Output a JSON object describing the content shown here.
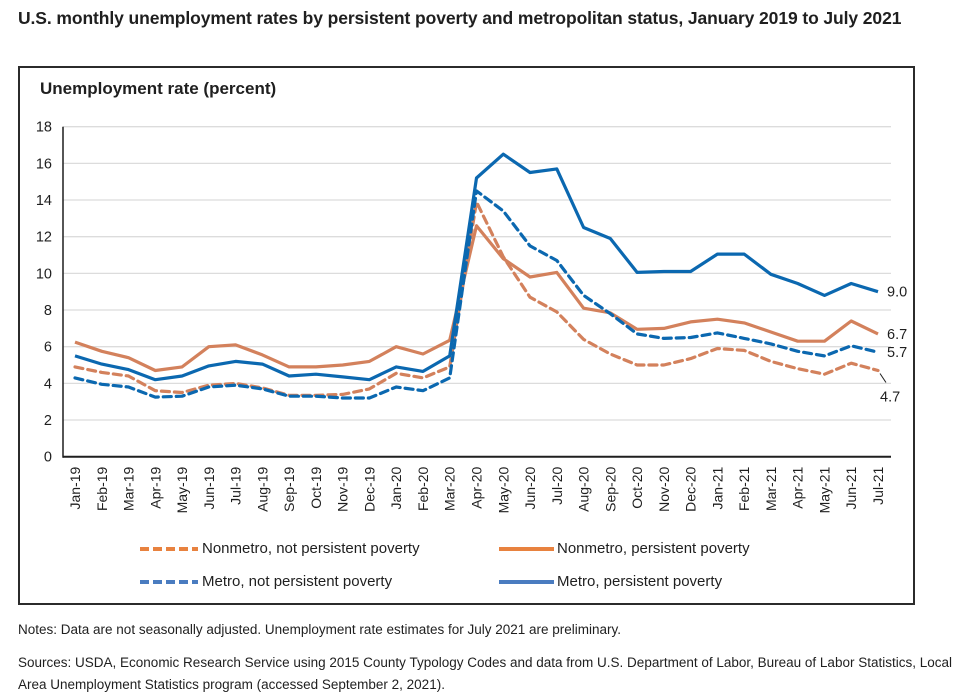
{
  "title": "U.S. monthly unemployment rates by persistent poverty and metropolitan status, January 2019 to July 2021",
  "notes": "Notes: Data are not seasonally adjusted. Unemployment rate estimates for July 2021 are preliminary.",
  "sources": "Sources: USDA, Economic Research Service using 2015 County Typology Codes and data from U.S. Department of Labor, Bureau of Labor Statistics, Local Area Unemployment Statistics program (accessed September 2, 2021).",
  "chart_data": {
    "type": "line",
    "title": "U.S. monthly unemployment rates by persistent poverty and metropolitan status, January 2019 to July 2021",
    "xlabel": "",
    "ylabel": "Unemployment rate (percent)",
    "ylim": [
      0,
      18
    ],
    "yticks": [
      "0",
      "2",
      "4",
      "6",
      "8",
      "10",
      "12",
      "14",
      "16",
      "18"
    ],
    "grid": true,
    "legend_position": "bottom",
    "categories": [
      "Jan-19",
      "Feb-19",
      "Mar-19",
      "Apr-19",
      "May-19",
      "Jun-19",
      "Jul-19",
      "Aug-19",
      "Sep-19",
      "Oct-19",
      "Nov-19",
      "Dec-19",
      "Jan-20",
      "Feb-20",
      "Mar-20",
      "Apr-20",
      "May-20",
      "Jun-20",
      "Jul-20",
      "Aug-20",
      "Sep-20",
      "Oct-20",
      "Nov-20",
      "Dec-20",
      "Jan-21",
      "Feb-21",
      "Mar-21",
      "Apr-21",
      "May-21",
      "Jun-21",
      "Jul-21"
    ],
    "series": [
      {
        "name": "Nonmetro, not persistent poverty",
        "color": "#d3815c",
        "style": "dashed",
        "end_label": "4.7",
        "values": [
          4.9,
          4.6,
          4.4,
          3.6,
          3.5,
          3.9,
          4.0,
          3.75,
          3.35,
          3.35,
          3.4,
          3.7,
          4.55,
          4.3,
          4.9,
          13.9,
          10.9,
          8.7,
          7.9,
          6.4,
          5.6,
          5.0,
          5.0,
          5.35,
          5.9,
          5.8,
          5.2,
          4.8,
          4.5,
          5.1,
          4.7
        ]
      },
      {
        "name": "Nonmetro, persistent poverty",
        "color": "#d3815c",
        "style": "solid",
        "end_label": "6.7",
        "values": [
          6.25,
          5.75,
          5.4,
          4.7,
          4.9,
          6.0,
          6.1,
          5.55,
          4.9,
          4.9,
          5.0,
          5.2,
          6.0,
          5.6,
          6.35,
          12.6,
          10.8,
          9.8,
          10.05,
          8.1,
          7.85,
          6.95,
          7.0,
          7.35,
          7.5,
          7.3,
          6.8,
          6.3,
          6.3,
          7.4,
          6.7
        ]
      },
      {
        "name": "Metro, not persistent poverty",
        "color": "#0b68b0",
        "style": "dashed",
        "end_label": "5.7",
        "values": [
          4.3,
          3.95,
          3.8,
          3.25,
          3.3,
          3.8,
          3.9,
          3.7,
          3.3,
          3.3,
          3.2,
          3.2,
          3.8,
          3.6,
          4.3,
          14.5,
          13.4,
          11.5,
          10.7,
          8.8,
          7.8,
          6.7,
          6.45,
          6.5,
          6.75,
          6.45,
          6.15,
          5.75,
          5.5,
          6.05,
          5.7
        ]
      },
      {
        "name": "Metro, persistent poverty",
        "color": "#0b68b0",
        "style": "solid",
        "end_label": "9.0",
        "values": [
          5.5,
          5.05,
          4.75,
          4.2,
          4.4,
          4.95,
          5.2,
          5.05,
          4.4,
          4.5,
          4.35,
          4.2,
          4.9,
          4.65,
          5.5,
          15.2,
          16.5,
          15.5,
          15.7,
          12.5,
          11.9,
          10.05,
          10.1,
          10.1,
          11.05,
          11.05,
          9.95,
          9.45,
          8.8,
          9.45,
          9.0
        ]
      }
    ],
    "legend": [
      {
        "label": "Nonmetro, not persistent poverty",
        "color": "#e8823f",
        "style": "dashed"
      },
      {
        "label": "Nonmetro, persistent poverty",
        "color": "#e8823f",
        "style": "solid"
      },
      {
        "label": "Metro, not persistent poverty",
        "color": "#4a7cc0",
        "style": "dashed"
      },
      {
        "label": "Metro, persistent poverty",
        "color": "#4a7cc0",
        "style": "solid"
      }
    ]
  }
}
